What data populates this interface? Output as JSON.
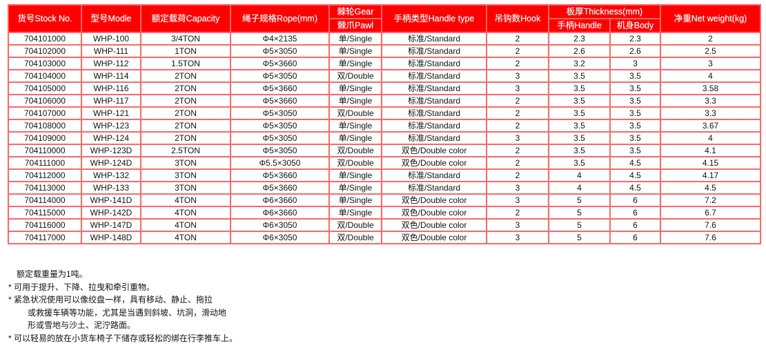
{
  "table": {
    "headers": {
      "stock": "货号Stock No.",
      "model": "型号Modle",
      "capacity": "额定载荷Capacity",
      "rope": "绳子规格Rope(mm)",
      "gear": "棘轮Gear",
      "pawl": "棘爪Pawl",
      "handle_type": "手柄类型Handle type",
      "hook": "吊钩数Hook",
      "thickness": "板厚Thickness(mm)",
      "th_handle": "手柄Handle",
      "th_body": "机身Body",
      "weight": "净重Net weight(kg)"
    },
    "rows": [
      [
        "704101000",
        "WHP-100",
        "3/4TON",
        "Φ4×2135",
        "单/Single",
        "标准/Standard",
        "2",
        "2.3",
        "2.3",
        "2"
      ],
      [
        "704102000",
        "WHP-111",
        "1TON",
        "Φ5×3050",
        "单/Single",
        "标准/Standard",
        "2",
        "2.6",
        "2.6",
        "2.5"
      ],
      [
        "704103000",
        "WHP-112",
        "1.5TON",
        "Φ5×3660",
        "单/Single",
        "标准/Standard",
        "2",
        "3.2",
        "3",
        "3"
      ],
      [
        "704104000",
        "WHP-114",
        "2TON",
        "Φ5×3050",
        "双/Double",
        "标准/Standard",
        "3",
        "3.5",
        "3.5",
        "4"
      ],
      [
        "704105000",
        "WHP-116",
        "2TON",
        "Φ5×3660",
        "单/Single",
        "标准/Standard",
        "3",
        "3.5",
        "3.5",
        "3.58"
      ],
      [
        "704106000",
        "WHP-117",
        "2TON",
        "Φ5×3660",
        "单/Single",
        "标准/Standard",
        "2",
        "3.5",
        "3.5",
        "3.3"
      ],
      [
        "704107000",
        "WHP-121",
        "2TON",
        "Φ5×3050",
        "双/Double",
        "标准/Standard",
        "2",
        "3.5",
        "3.5",
        "3.3"
      ],
      [
        "704108000",
        "WHP-123",
        "2TON",
        "Φ5×3050",
        "单/Single",
        "标准/Standard",
        "2",
        "3.5",
        "3.5",
        "3.67"
      ],
      [
        "704109000",
        "WHP-124",
        "2TON",
        "Φ5×3050",
        "单/Single",
        "标准/Standard",
        "3",
        "3.5",
        "3.5",
        "4"
      ],
      [
        "704110000",
        "WHP-123D",
        "2.5TON",
        "Φ5×3050",
        "双/Double",
        "双色/Double color",
        "2",
        "3.5",
        "3.5",
        "4.1"
      ],
      [
        "704111000",
        "WHP-124D",
        "3TON",
        "Φ5.5×3050",
        "双/Double",
        "双色/Double color",
        "2",
        "3.5",
        "4.5",
        "4.15"
      ],
      [
        "704112000",
        "WHP-132",
        "3TON",
        "Φ5×3660",
        "单/Single",
        "标准/Standard",
        "2",
        "4",
        "4.5",
        "4.17"
      ],
      [
        "704113000",
        "WHP-133",
        "3TON",
        "Φ5×3660",
        "单/Single",
        "标准/Standard",
        "3",
        "4",
        "4.5",
        "4.5"
      ],
      [
        "704114000",
        "WHP-141D",
        "4TON",
        "Φ6×3660",
        "单/Single",
        "双色/Double color",
        "3",
        "5",
        "6",
        "7.2"
      ],
      [
        "704115000",
        "WHP-142D",
        "4TON",
        "Φ6×3660",
        "单/Single",
        "双色/Double color",
        "2",
        "5",
        "6",
        "6.7"
      ],
      [
        "704116000",
        "WHP-147D",
        "4TON",
        "Φ6×3050",
        "双/Double",
        "双色/Double color",
        "3",
        "5",
        "6",
        "7.6"
      ],
      [
        "704117000",
        "WHP-148D",
        "4TON",
        "Φ6×3050",
        "双/Double",
        "双色/Double color",
        "3",
        "5",
        "6",
        "7.6"
      ]
    ]
  },
  "notes": [
    "额定载重量为1吨。",
    "* 可用于提升、下降、拉曳和牵引重物。",
    "* 紧急状况使用可以像绞盘一样，具有移动、静止、拖拉",
    "或救援车辆等功能，尤其是当遇到斜坡、坑洞，滑动地",
    "形或雪地与沙土、泥泞路面。",
    "* 可以轻易的放在小货车椅子下储存或轻松的绑在行李推车上。"
  ],
  "colors": {
    "header_bg": "#ff0000",
    "border": "#ff6666"
  }
}
